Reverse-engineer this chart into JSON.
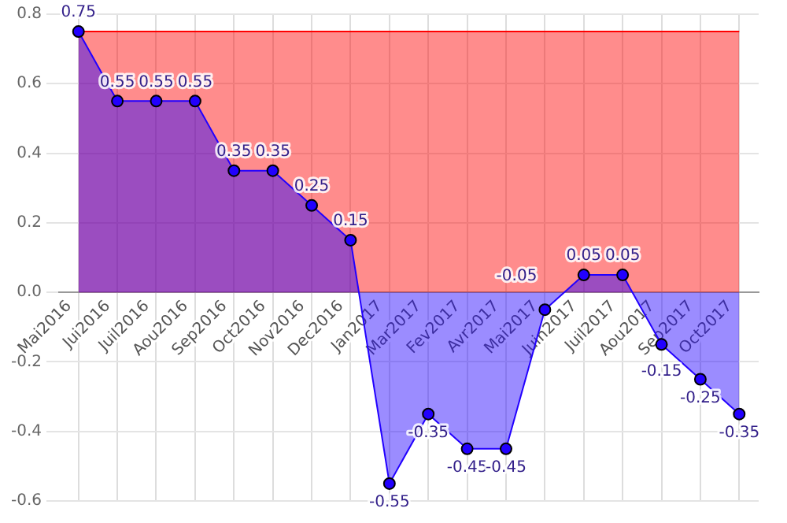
{
  "chart_data": {
    "type": "area",
    "categories": [
      "Mai2016",
      "Jui2016",
      "Juil2016",
      "Aou2016",
      "Sep2016",
      "Oct2016",
      "Nov2016",
      "Dec2016",
      "Jan2017",
      "Mar2017",
      "Fev2017",
      "Avr2017",
      "Mai2017",
      "Juin2017",
      "Juil2017",
      "Aou2017",
      "Sep2017",
      "Oct2017"
    ],
    "series": [
      {
        "color": "#ff0000",
        "values": [
          0.75,
          0.75,
          0.75,
          0.75,
          0.75,
          0.75,
          0.75,
          0.75,
          0.75,
          0.75,
          0.75,
          0.75,
          0.75,
          0.75,
          0.75,
          0.75,
          0.75,
          0.75
        ]
      },
      {
        "color": "#2200ff",
        "marker": "circle",
        "values": [
          0.75,
          0.55,
          0.55,
          0.55,
          0.35,
          0.35,
          0.25,
          0.15,
          -0.55,
          -0.35,
          -0.45,
          -0.45,
          -0.05,
          0.05,
          0.05,
          -0.15,
          -0.25,
          -0.35
        ],
        "value_labels": [
          "0.75",
          "0.55",
          "0.55",
          "0.55",
          "0.35",
          "0.35",
          "0.25",
          "0.15",
          "-0.55",
          "-0.35",
          "-0.45",
          "-0.45",
          "-0.05",
          "0.05",
          "0.05",
          "-0.15",
          "-0.25",
          "-0.35"
        ]
      }
    ],
    "ylim": [
      -0.6,
      0.8
    ],
    "yticks": [
      -0.6,
      -0.4,
      -0.2,
      {
        "value": 0,
        "label": "0.0"
      },
      0.2,
      0.4,
      0.6,
      0.8
    ],
    "grid": true,
    "legend": false
  }
}
